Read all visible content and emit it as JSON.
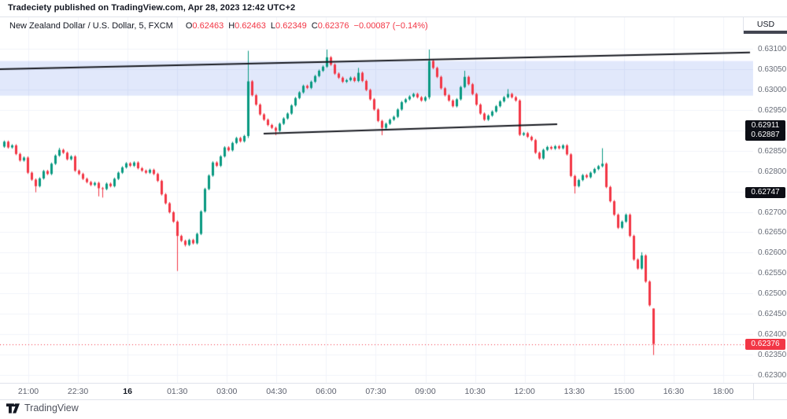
{
  "header": {
    "publication_line": "Tradeciety published on TradingView.com, Apr 28, 2023 12:42 UTC+2"
  },
  "symbol_row": {
    "name": "New Zealand Dollar / U.S. Dollar, 5, FXCM",
    "open_label": "O",
    "open_value": "0.62463",
    "high_label": "H",
    "high_value": "0.62463",
    "low_label": "L",
    "low_value": "0.62349",
    "close_label": "C",
    "close_value": "0.62376",
    "change_value": "−0.00087 (−0.14%)"
  },
  "footer": {
    "brand": "TradingView"
  },
  "chart_data": {
    "type": "candlestick",
    "title": "New Zealand Dollar / U.S. Dollar, 5, FXCM",
    "axis_currency": "USD",
    "ylim": [
      0.623,
      0.631
    ],
    "grid_step": 0.0005,
    "grid": true,
    "y_tick_labels": [
      "0.63100",
      "0.63050",
      "0.63000",
      "0.62950",
      "0.62850",
      "0.62800",
      "0.62700",
      "0.62650",
      "0.62600",
      "0.62550",
      "0.62500",
      "0.62450",
      "0.62400",
      "0.62350",
      "0.62300"
    ],
    "x_tick_labels": [
      "21:00",
      "22:30",
      "16",
      "01:30",
      "03:00",
      "04:30",
      "06:00",
      "07:30",
      "09:00",
      "10:30",
      "12:00",
      "13:30",
      "15:00",
      "16:30",
      "18:00"
    ],
    "x_bold_label": "16",
    "up_color": "#089981",
    "down_color": "#f23645",
    "trendline_color": "#16181f",
    "price_base": 0.62,
    "pip": 1e-05,
    "candles_note": "Each candle is [open,high,low,close] expressed in units of 0.00001 above 0.62 (e.g. 872 = 0.62872). ~5min bars from 21:00 to ~16:10.",
    "candles": [
      [
        860,
        875,
        857,
        872
      ],
      [
        872,
        875,
        855,
        858
      ],
      [
        858,
        866,
        855,
        863
      ],
      [
        863,
        866,
        839,
        842
      ],
      [
        842,
        845,
        823,
        826
      ],
      [
        826,
        836,
        823,
        833
      ],
      [
        833,
        836,
        793,
        796
      ],
      [
        796,
        799,
        776,
        779
      ],
      [
        779,
        782,
        748,
        763
      ],
      [
        763,
        785,
        760,
        782
      ],
      [
        782,
        803,
        779,
        800
      ],
      [
        800,
        803,
        790,
        793
      ],
      [
        793,
        821,
        790,
        818
      ],
      [
        818,
        841,
        815,
        838
      ],
      [
        838,
        857,
        835,
        852
      ],
      [
        852,
        855,
        842,
        845
      ],
      [
        845,
        848,
        826,
        829
      ],
      [
        829,
        839,
        826,
        836
      ],
      [
        836,
        839,
        798,
        801
      ],
      [
        801,
        804,
        790,
        793
      ],
      [
        793,
        796,
        778,
        781
      ],
      [
        781,
        784,
        770,
        773
      ],
      [
        773,
        776,
        763,
        766
      ],
      [
        766,
        774,
        763,
        771
      ],
      [
        771,
        774,
        738,
        758
      ],
      [
        758,
        761,
        735,
        756
      ],
      [
        756,
        772,
        753,
        769
      ],
      [
        769,
        772,
        760,
        763
      ],
      [
        763,
        784,
        760,
        781
      ],
      [
        781,
        799,
        778,
        796
      ],
      [
        796,
        812,
        793,
        809
      ],
      [
        809,
        822,
        806,
        819
      ],
      [
        819,
        822,
        810,
        813
      ],
      [
        813,
        824,
        810,
        821
      ],
      [
        821,
        824,
        804,
        807
      ],
      [
        807,
        810,
        798,
        801
      ],
      [
        801,
        804,
        793,
        796
      ],
      [
        796,
        806,
        793,
        803
      ],
      [
        803,
        806,
        790,
        793
      ],
      [
        793,
        796,
        773,
        776
      ],
      [
        776,
        779,
        740,
        743
      ],
      [
        743,
        746,
        718,
        721
      ],
      [
        721,
        724,
        696,
        699
      ],
      [
        699,
        702,
        673,
        676
      ],
      [
        676,
        679,
        555,
        641
      ],
      [
        641,
        644,
        626,
        629
      ],
      [
        629,
        632,
        615,
        619
      ],
      [
        619,
        634,
        616,
        631
      ],
      [
        631,
        634,
        620,
        623
      ],
      [
        623,
        649,
        620,
        646
      ],
      [
        646,
        704,
        643,
        701
      ],
      [
        701,
        759,
        698,
        756
      ],
      [
        756,
        792,
        753,
        789
      ],
      [
        789,
        824,
        786,
        821
      ],
      [
        821,
        824,
        810,
        813
      ],
      [
        813,
        839,
        810,
        836
      ],
      [
        836,
        861,
        833,
        858
      ],
      [
        858,
        861,
        848,
        851
      ],
      [
        851,
        872,
        848,
        869
      ],
      [
        869,
        884,
        866,
        881
      ],
      [
        881,
        884,
        870,
        873
      ],
      [
        873,
        889,
        870,
        886
      ],
      [
        886,
        1095,
        881,
        1020
      ],
      [
        1020,
        1023,
        983,
        986
      ],
      [
        986,
        989,
        960,
        963
      ],
      [
        963,
        966,
        936,
        939
      ],
      [
        939,
        942,
        923,
        926
      ],
      [
        926,
        929,
        910,
        913
      ],
      [
        913,
        916,
        903,
        906
      ],
      [
        906,
        909,
        888,
        899
      ],
      [
        899,
        919,
        896,
        916
      ],
      [
        916,
        932,
        913,
        929
      ],
      [
        929,
        944,
        926,
        941
      ],
      [
        941,
        964,
        938,
        961
      ],
      [
        961,
        982,
        958,
        979
      ],
      [
        979,
        996,
        976,
        993
      ],
      [
        993,
        1012,
        990,
        1009
      ],
      [
        1009,
        1012,
        1001,
        1004
      ],
      [
        1004,
        1022,
        1001,
        1019
      ],
      [
        1019,
        1036,
        1016,
        1033
      ],
      [
        1033,
        1049,
        1030,
        1046
      ],
      [
        1046,
        1059,
        1043,
        1056
      ],
      [
        1056,
        1098,
        1053,
        1079
      ],
      [
        1079,
        1082,
        1058,
        1061
      ],
      [
        1061,
        1064,
        1036,
        1039
      ],
      [
        1039,
        1042,
        1026,
        1029
      ],
      [
        1029,
        1032,
        1016,
        1019
      ],
      [
        1019,
        1026,
        1016,
        1023
      ],
      [
        1023,
        1032,
        1020,
        1029
      ],
      [
        1029,
        1032,
        1018,
        1021
      ],
      [
        1021,
        1053,
        1018,
        1041
      ],
      [
        1041,
        1044,
        1018,
        1021
      ],
      [
        1021,
        1024,
        996,
        999
      ],
      [
        999,
        1002,
        973,
        976
      ],
      [
        976,
        979,
        948,
        951
      ],
      [
        951,
        954,
        920,
        923
      ],
      [
        923,
        926,
        888,
        906
      ],
      [
        906,
        919,
        903,
        916
      ],
      [
        916,
        929,
        913,
        926
      ],
      [
        926,
        936,
        923,
        933
      ],
      [
        933,
        954,
        930,
        951
      ],
      [
        951,
        972,
        948,
        969
      ],
      [
        969,
        979,
        966,
        976
      ],
      [
        976,
        986,
        973,
        983
      ],
      [
        983,
        992,
        980,
        989
      ],
      [
        989,
        992,
        978,
        981
      ],
      [
        981,
        984,
        970,
        973
      ],
      [
        973,
        984,
        970,
        981
      ],
      [
        981,
        1098,
        976,
        1070
      ],
      [
        1070,
        1073,
        1050,
        1053
      ],
      [
        1053,
        1056,
        1028,
        1031
      ],
      [
        1031,
        1034,
        1000,
        1003
      ],
      [
        1003,
        1006,
        983,
        986
      ],
      [
        986,
        989,
        970,
        973
      ],
      [
        973,
        976,
        956,
        959
      ],
      [
        959,
        979,
        956,
        976
      ],
      [
        976,
        1009,
        973,
        1006
      ],
      [
        1006,
        1046,
        1003,
        1031
      ],
      [
        1031,
        1034,
        1010,
        1013
      ],
      [
        1013,
        1016,
        986,
        989
      ],
      [
        989,
        992,
        960,
        963
      ],
      [
        963,
        966,
        938,
        941
      ],
      [
        941,
        944,
        923,
        926
      ],
      [
        926,
        939,
        923,
        936
      ],
      [
        936,
        949,
        933,
        946
      ],
      [
        946,
        962,
        943,
        959
      ],
      [
        959,
        974,
        956,
        971
      ],
      [
        971,
        984,
        968,
        981
      ],
      [
        981,
        1001,
        978,
        989
      ],
      [
        989,
        992,
        978,
        981
      ],
      [
        981,
        984,
        970,
        973
      ],
      [
        973,
        976,
        886,
        889
      ],
      [
        889,
        896,
        886,
        893
      ],
      [
        893,
        896,
        881,
        884
      ],
      [
        884,
        887,
        873,
        876
      ],
      [
        876,
        879,
        842,
        845
      ],
      [
        845,
        848,
        828,
        831
      ],
      [
        831,
        855,
        828,
        852
      ],
      [
        852,
        862,
        849,
        859
      ],
      [
        859,
        862,
        852,
        855
      ],
      [
        855,
        864,
        852,
        861
      ],
      [
        861,
        864,
        853,
        856
      ],
      [
        856,
        866,
        853,
        863
      ],
      [
        863,
        866,
        838,
        841
      ],
      [
        841,
        844,
        785,
        788
      ],
      [
        788,
        791,
        745,
        763
      ],
      [
        763,
        781,
        760,
        778
      ],
      [
        778,
        793,
        775,
        790
      ],
      [
        790,
        793,
        782,
        785
      ],
      [
        785,
        799,
        782,
        796
      ],
      [
        796,
        808,
        793,
        805
      ],
      [
        805,
        815,
        802,
        812
      ],
      [
        812,
        856,
        809,
        818
      ],
      [
        818,
        821,
        758,
        761
      ],
      [
        761,
        764,
        723,
        726
      ],
      [
        726,
        729,
        690,
        693
      ],
      [
        693,
        696,
        658,
        661
      ],
      [
        661,
        679,
        658,
        676
      ],
      [
        676,
        696,
        673,
        693
      ],
      [
        693,
        696,
        638,
        641
      ],
      [
        641,
        644,
        580,
        583
      ],
      [
        583,
        586,
        558,
        561
      ],
      [
        561,
        601,
        558,
        593
      ],
      [
        593,
        596,
        526,
        529
      ],
      [
        529,
        532,
        468,
        471
      ],
      [
        463,
        463,
        349,
        376
      ]
    ],
    "supply_zone": {
      "top": 0.6307,
      "bottom": 0.62985,
      "fill": "rgba(45,95,230,0.14)"
    },
    "trendlines": [
      {
        "name": "upper-resistance-trendline",
        "x1": 0,
        "price1": 0.6305,
        "x2": 953,
        "price2": 0.63091
      },
      {
        "name": "minor-support-trendline",
        "x1": 335,
        "price1": 0.62892,
        "x2": 708,
        "price2": 0.62915
      }
    ],
    "current_price": 0.62376,
    "price_badges": [
      {
        "name": "trendline-price-badge-high",
        "text": "0.62911",
        "price": 0.62911,
        "bg": "#0c0e15"
      },
      {
        "name": "trendline-price-badge-low",
        "text": "0.62887",
        "price": 0.62887,
        "bg": "#0c0e15"
      },
      {
        "name": "level-price-badge",
        "text": "0.62747",
        "price": 0.62747,
        "bg": "#0c0e15"
      },
      {
        "name": "current-price-badge",
        "text": "0.62376",
        "price": 0.62376,
        "bg": "#f23645"
      }
    ]
  }
}
